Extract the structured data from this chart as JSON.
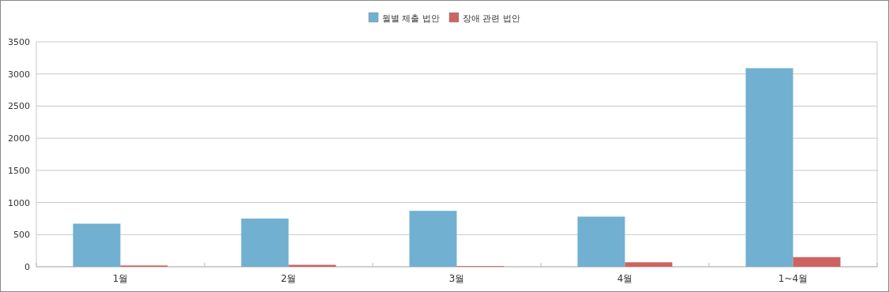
{
  "chart_data": {
    "type": "bar",
    "categories": [
      "1월",
      "2월",
      "3월",
      "4월",
      "1~4월"
    ],
    "series": [
      {
        "name": "월별 제출 법안",
        "color": "#71b0d0",
        "values": [
          670,
          750,
          870,
          780,
          3090
        ]
      },
      {
        "name": "장애 관련 법안",
        "color": "#cd6461",
        "values": [
          20,
          30,
          10,
          70,
          150
        ]
      }
    ],
    "ylim": [
      0,
      3500
    ],
    "yticks": [
      0,
      500,
      1000,
      1500,
      2000,
      2500,
      3000,
      3500
    ],
    "grid": "y",
    "legend": "top"
  }
}
